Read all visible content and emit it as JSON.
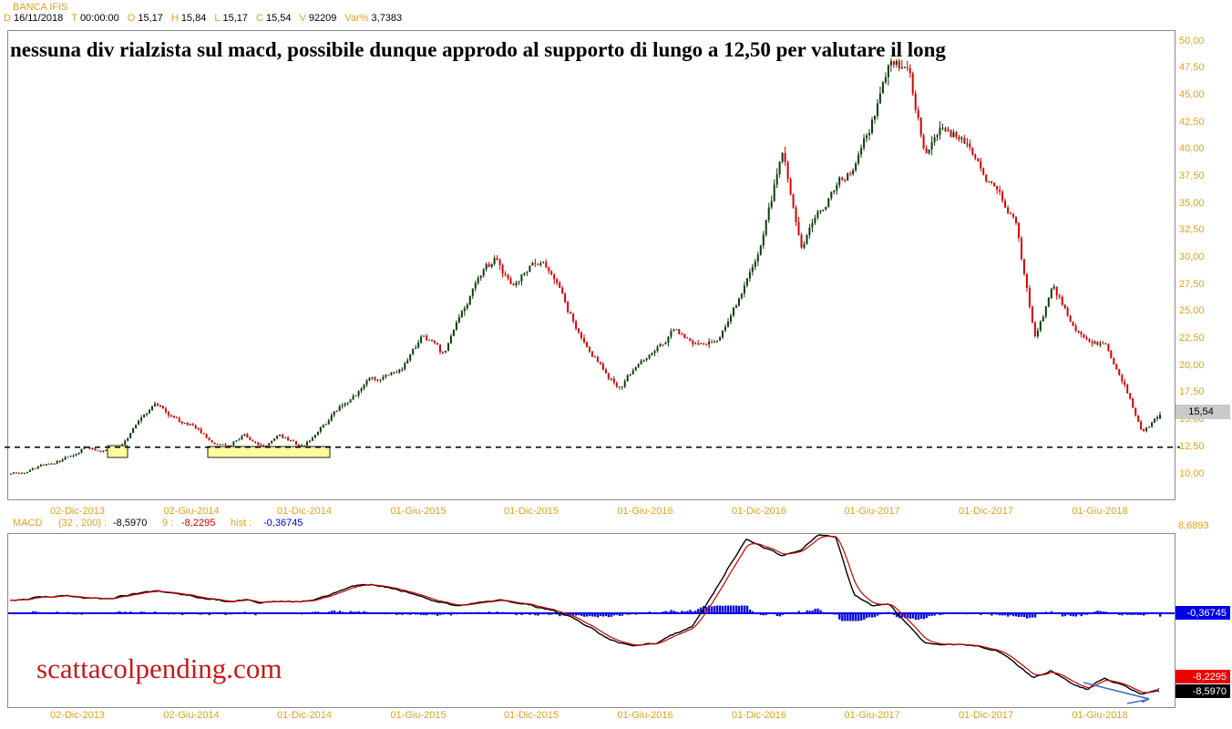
{
  "header": {
    "symbol": "BANCA IFIS",
    "fields": [
      {
        "label": "D",
        "value": "16/11/2018"
      },
      {
        "label": "T",
        "value": "00:00:00"
      },
      {
        "label": "O",
        "value": "15,17"
      },
      {
        "label": "H",
        "value": "15,84"
      },
      {
        "label": "L",
        "value": "15,17"
      },
      {
        "label": "C",
        "value": "15,54"
      },
      {
        "label": "V",
        "value": "92209"
      },
      {
        "label": "Var%",
        "value": "3,7383"
      }
    ]
  },
  "annotation": "nessuna div rialzista sul macd, possibile dunque approdo al supporto di lungo a 12,50 per valutare il long",
  "watermark": "scattacolpending.com",
  "price_axis": {
    "ticks": [
      "50,00",
      "47,50",
      "45,00",
      "42,50",
      "40,00",
      "37,50",
      "35,00",
      "32,50",
      "30,00",
      "27,50",
      "25,00",
      "22,50",
      "20,00",
      "17,50",
      "15,00",
      "12,50",
      "10,00"
    ],
    "last_price_tag": "15,54"
  },
  "x_axis": {
    "dates": [
      "02-Dic-2013",
      "02-Giu-2014",
      "01-Dic-2014",
      "01-Giu-2015",
      "01-Dic-2015",
      "01-Giu-2016",
      "01-Dic-2016",
      "01-Giu-2017",
      "01-Dic-2017",
      "01-Giu-2018"
    ]
  },
  "macd_header": {
    "name": "MACD",
    "params": "(32 , 200) :",
    "macd_value": "-8,5970",
    "signal_label": "9 :",
    "signal_value": "-8,2295",
    "hist_label": "hist :",
    "hist_value": "-0,36745"
  },
  "macd_axis": {
    "max_label": "8,6893",
    "hist_tag": "-0,36745",
    "signal_tag": "-8,2295",
    "macd_tag": "-8,5970"
  },
  "colors": {
    "accent_orange": "#E0A21E",
    "candle_up": "#0B3D0B",
    "candle_down": "#D60000",
    "hist_blue": "#0000E6",
    "signal_red": "#C80000",
    "macd_black": "#000000",
    "support_yellow": "#FFFC9E",
    "watermark_red": "#C41A1A",
    "arrow_blue": "#3F6FC0",
    "tag_gray": "#C9C9C9"
  },
  "chart_data": {
    "type": "candlestick+macd",
    "title": "BANCA IFIS daily candlestick chart with MACD(32,200) and 9-period signal",
    "x_months": [
      "2013-08",
      "2013-09",
      "2013-10",
      "2013-11",
      "2013-12",
      "2014-01",
      "2014-02",
      "2014-03",
      "2014-04",
      "2014-05",
      "2014-06",
      "2014-07",
      "2014-08",
      "2014-09",
      "2014-10",
      "2014-11",
      "2014-12",
      "2015-01",
      "2015-02",
      "2015-03",
      "2015-04",
      "2015-05",
      "2015-06",
      "2015-07",
      "2015-08",
      "2015-09",
      "2015-10",
      "2015-11",
      "2015-12",
      "2016-01",
      "2016-02",
      "2016-03",
      "2016-04",
      "2016-05",
      "2016-06",
      "2016-07",
      "2016-08",
      "2016-09",
      "2016-10",
      "2016-11",
      "2016-12",
      "2017-01",
      "2017-02",
      "2017-03",
      "2017-04",
      "2017-05",
      "2017-06",
      "2017-07",
      "2017-08",
      "2017-09",
      "2017-10",
      "2017-11",
      "2017-12",
      "2018-01",
      "2018-02",
      "2018-03",
      "2018-04",
      "2018-05",
      "2018-06",
      "2018-07",
      "2018-08",
      "2018-09",
      "2018-10",
      "2018-11",
      "2018-11-16"
    ],
    "x_tick_labels": [
      "02-Dic-2013",
      "02-Giu-2014",
      "01-Dic-2014",
      "01-Giu-2015",
      "01-Dic-2015",
      "01-Giu-2016",
      "01-Dic-2016",
      "01-Giu-2017",
      "01-Dic-2017",
      "01-Giu-2018"
    ],
    "price_panel": {
      "ylim": [
        7.8,
        51
      ],
      "yticks": [
        50,
        47.5,
        45,
        42.5,
        40,
        37.5,
        35,
        32.5,
        30,
        27.5,
        25,
        22.5,
        20,
        17.5,
        15,
        12.5,
        10
      ],
      "support_level": 12.5,
      "support_zones": [
        {
          "x_from": "2014-01",
          "x_to": "2014-02",
          "price_low": 12.1,
          "price_high": 12.7
        },
        {
          "x_from": "2014-07",
          "x_to": "2015-01",
          "price_low": 12.1,
          "price_high": 12.7
        }
      ],
      "last_ohlc": {
        "date": "16/11/2018",
        "open": 15.17,
        "high": 15.84,
        "low": 15.17,
        "close": 15.54,
        "volume": 92209,
        "var_pct": 3.7383
      },
      "close": [
        10.1,
        10.5,
        10.9,
        11.6,
        12.6,
        12.1,
        12.3,
        14.8,
        16.5,
        15.2,
        14.6,
        13.2,
        12.6,
        13.8,
        12.7,
        13.4,
        12.6,
        13.5,
        15.6,
        17.3,
        18.6,
        19.0,
        20.5,
        23.0,
        21.0,
        24.0,
        28.0,
        29.6,
        27.0,
        29.8,
        28.5,
        25.0,
        22.5,
        20.0,
        17.8,
        20.3,
        21.8,
        23.4,
        21.5,
        22.2,
        24.2,
        27.8,
        33.0,
        40.0,
        31.8,
        33.5,
        36.5,
        38.5,
        43.0,
        49.4,
        46.5,
        39.5,
        41.6,
        41.0,
        38.0,
        36.0,
        34.0,
        22.5,
        26.8,
        24.5,
        22.3,
        21.8,
        18.5,
        14.0,
        15.54
      ]
    },
    "macd_panel": {
      "ylim": [
        -10.3,
        8.7
      ],
      "zero_line": 0,
      "scale_max": 8.6893,
      "macd": [
        1.5,
        1.6,
        1.8,
        2.0,
        1.8,
        1.6,
        1.8,
        2.2,
        2.4,
        2.1,
        1.9,
        1.6,
        1.3,
        1.5,
        1.2,
        1.4,
        1.2,
        1.5,
        2.2,
        3.0,
        3.2,
        2.9,
        2.4,
        1.9,
        1.3,
        0.8,
        1.1,
        1.5,
        1.3,
        0.9,
        0.3,
        -0.3,
        -1.2,
        -2.4,
        -3.3,
        -3.5,
        -3.2,
        -2.3,
        -1.5,
        1.5,
        5.0,
        8.2,
        7.2,
        6.3,
        6.8,
        8.69,
        8.3,
        2.0,
        0.8,
        0.9,
        -1.3,
        -3.3,
        -3.5,
        -3.4,
        -3.6,
        -4.0,
        -5.5,
        -7.1,
        -6.2,
        -7.5,
        -8.3,
        -7.1,
        -8.0,
        -9.0,
        -8.597
      ],
      "last": {
        "macd": -8.597,
        "signal": -8.2295,
        "hist": -0.36745
      }
    }
  }
}
